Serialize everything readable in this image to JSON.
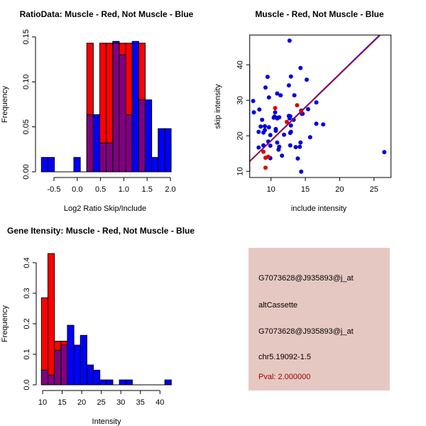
{
  "chart_data": [
    {
      "type": "bar",
      "subtype": "overlaid-histogram",
      "title": "RatioData: Muscle - Red, Not Muscle - Blue",
      "xlabel": "Log2 Ratio Skip/Include",
      "ylabel": "Frequency",
      "xlim": [
        -0.77,
        2.015
      ],
      "ylim": [
        0,
        0.15
      ],
      "bin_start": -0.77,
      "bin_width": 0.1393,
      "xticks": [
        "-0.5",
        "0.0",
        "0.5",
        "1.0",
        "1.5",
        "2.0"
      ],
      "xtick_values": [
        -0.5,
        0,
        0.5,
        1.0,
        1.5,
        2.0
      ],
      "yticks": [
        "0.00",
        "0.05",
        "0.10",
        "0.15"
      ],
      "ytick_values": [
        0,
        0.05,
        0.1,
        0.15
      ],
      "series": [
        {
          "name": "Muscle",
          "color": "#ff0000",
          "values": [
            0,
            0,
            0,
            0,
            0,
            0,
            0,
            0.143,
            0,
            0.143,
            0.143,
            0.143,
            0.143,
            0.143,
            0,
            0.143,
            0,
            0,
            0,
            0
          ]
        },
        {
          "name": "Not Muscle",
          "color": "#0000ff",
          "values": [
            0.016,
            0.016,
            0,
            0,
            0,
            0.016,
            0,
            0.0635,
            0.0635,
            0.032,
            0.032,
            0.145,
            0.13,
            0.0635,
            0.145,
            0.08,
            0.08,
            0.016,
            0.048,
            0.048
          ]
        }
      ],
      "overlap_color": "#800080"
    },
    {
      "type": "scatter",
      "title": "Muscle - Red, Not Muscle - Blue",
      "xlabel": "include intensity",
      "ylabel": "skip intensity",
      "xlim": [
        6.9,
        27.5
      ],
      "ylim": [
        8.3,
        48.4
      ],
      "xticks": [
        "10",
        "15",
        "20",
        "25"
      ],
      "xtick_values": [
        10,
        15,
        20,
        25
      ],
      "yticks": [
        "10",
        "20",
        "30",
        "40"
      ],
      "ytick_values": [
        10,
        20,
        30,
        40
      ],
      "series": [
        {
          "name": "Not Muscle",
          "color": "#0000dd",
          "points": [
            [
              7.4,
              29.8
            ],
            [
              7.5,
              26.6
            ],
            [
              8.3,
              27.4
            ],
            [
              8.2,
              21.1
            ],
            [
              8.2,
              16.7
            ],
            [
              8.7,
              24.5
            ],
            [
              8.5,
              22.6
            ],
            [
              9.1,
              22.7
            ],
            [
              9.1,
              21.6
            ],
            [
              8.9,
              20.9
            ],
            [
              9.5,
              36.6
            ],
            [
              9.2,
              33.6
            ],
            [
              9.7,
              30.8
            ],
            [
              9.7,
              22.4
            ],
            [
              9.9,
              20.2
            ],
            [
              9.6,
              18.4
            ],
            [
              9.9,
              17.2
            ],
            [
              8.9,
              17.3
            ],
            [
              9.9,
              13.7
            ],
            [
              10.9,
              31.9
            ],
            [
              10.6,
              26.6
            ],
            [
              10.5,
              25.4
            ],
            [
              10.7,
              21.9
            ],
            [
              10.7,
              21.4
            ],
            [
              10.9,
              18.1
            ],
            [
              11.1,
              16.1
            ],
            [
              11.2,
              16.9
            ],
            [
              10.4,
              25.1
            ],
            [
              10.9,
              24.9
            ],
            [
              10.9,
              25.1
            ],
            [
              11.2,
              25.2
            ],
            [
              11.4,
              31.4
            ],
            [
              11.6,
              14.4
            ],
            [
              11.9,
              20.3
            ],
            [
              12.6,
              34.2
            ],
            [
              12.9,
              36.7
            ],
            [
              12.6,
              25.6
            ],
            [
              12.7,
              24.9
            ],
            [
              12.9,
              22.9
            ],
            [
              12.8,
              20.8
            ],
            [
              12.9,
              21.1
            ],
            [
              12.8,
              17.3
            ],
            [
              13.4,
              31.4
            ],
            [
              13.3,
              24.5
            ],
            [
              12.7,
              46.8
            ],
            [
              14.3,
              39.1
            ],
            [
              13.6,
              16.8
            ],
            [
              13.9,
              13.6
            ],
            [
              14.2,
              16.9
            ],
            [
              14.3,
              18.1
            ],
            [
              14.4,
              9.9
            ],
            [
              14.4,
              27.1
            ],
            [
              14.5,
              26.2
            ],
            [
              15.2,
              35.8
            ],
            [
              15.4,
              27.5
            ],
            [
              15.7,
              19.6
            ],
            [
              16.6,
              29.4
            ],
            [
              16.6,
              23.4
            ],
            [
              17.6,
              23.2
            ],
            [
              26.5,
              15.4
            ],
            [
              14.6,
              26.2
            ],
            [
              12.8,
              25.5
            ]
          ],
          "fit": {
            "intercept": -0.08,
            "slope": 1.88
          }
        },
        {
          "name": "Muscle",
          "color": "#dd0000",
          "points": [
            [
              10.6,
              27.8
            ],
            [
              13.8,
              28.6
            ],
            [
              12.3,
              23.9
            ],
            [
              8.9,
              15.5
            ],
            [
              9.2,
              13.8
            ],
            [
              9.6,
              14.1
            ],
            [
              9.2,
              11.0
            ],
            [
              14.4,
              26.9
            ]
          ],
          "fit": {
            "intercept": -0.24,
            "slope": 1.874
          }
        }
      ]
    },
    {
      "type": "bar",
      "subtype": "overlaid-histogram",
      "title": "Gene Itensity: Muscle - Red, Not Muscle - Blue",
      "xlabel": "Intensity",
      "ylabel": "Frequency",
      "xlim": [
        9.7,
        42.9
      ],
      "ylim": [
        0,
        0.43
      ],
      "bin_start": 9.7,
      "bin_width": 1.66,
      "xticks": [
        "10",
        "15",
        "20",
        "25",
        "30",
        "35",
        "40"
      ],
      "xtick_values": [
        10,
        15,
        20,
        25,
        30,
        35,
        40
      ],
      "yticks": [
        "0.0",
        "0.1",
        "0.2",
        "0.3",
        "0.4"
      ],
      "ytick_values": [
        0,
        0.1,
        0.2,
        0.3,
        0.4
      ],
      "series": [
        {
          "name": "Muscle",
          "color": "#ff0000",
          "values": [
            0.285,
            0.43,
            0.143,
            0.143,
            0,
            0,
            0,
            0,
            0,
            0,
            0,
            0,
            0,
            0,
            0,
            0,
            0,
            0,
            0,
            0
          ]
        },
        {
          "name": "Not Muscle",
          "color": "#0000ff",
          "values": [
            0.048,
            0.032,
            0.113,
            0.13,
            0.195,
            0.13,
            0.162,
            0.065,
            0.048,
            0.016,
            0.016,
            0,
            0.016,
            0.016,
            0,
            0,
            0,
            0,
            0,
            0.016
          ]
        }
      ],
      "overlap_color": "#800080"
    }
  ],
  "info": {
    "probe_id": "G7073628@J935893@j_at",
    "event_type": "altCassette",
    "probe_id_2": "G7073628@J935893@j_at",
    "location": "chr5.19092-1.5",
    "pval": "Pval: 2.000000"
  }
}
